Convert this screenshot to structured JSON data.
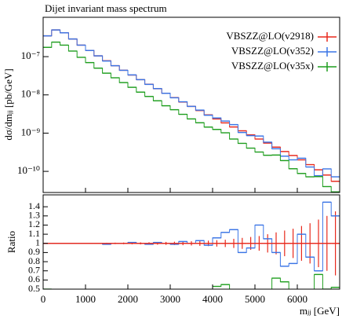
{
  "chart_data": {
    "type": "histogram",
    "title": "Dijet invariant mass spectrum",
    "xlabel": "mⱼⱼ [GeV]",
    "ylabel": "dσ/dmⱼⱼ [pb/GeV]",
    "bins": [
      0,
      200,
      400,
      600,
      800,
      1000,
      1200,
      1400,
      1600,
      1800,
      2000,
      2200,
      2400,
      2600,
      2800,
      3000,
      3200,
      3400,
      3600,
      3800,
      4000,
      4200,
      4400,
      4600,
      4800,
      5000,
      5200,
      5400,
      5600,
      5800,
      6000,
      6200,
      6400,
      6600,
      6800,
      7000
    ],
    "series": [
      {
        "name": "VBSZZ@LO(v2918)",
        "color": "#e8291c",
        "values": [
          3.5e-07,
          5e-07,
          4.2e-07,
          2.9e-07,
          2e-07,
          1.45e-07,
          1.05e-07,
          7.8e-08,
          5.8e-08,
          4.4e-08,
          3.3e-08,
          2.5e-08,
          1.9e-08,
          1.45e-08,
          1.1e-08,
          8.5e-09,
          6.5e-09,
          5e-09,
          3.9e-09,
          3e-09,
          2.35e-09,
          1.85e-09,
          1.45e-09,
          1.15e-09,
          9e-10,
          7e-10,
          5.5e-10,
          4.3e-10,
          3.3e-10,
          2.6e-10,
          2e-10,
          1.5e-10,
          1.1e-10,
          8e-11,
          5.5e-11
        ]
      },
      {
        "name": "VBSZZ@LO(v352)",
        "color": "#3a75e6",
        "values": [
          3.5e-07,
          5e-07,
          4.2e-07,
          2.9e-07,
          2e-07,
          1.45e-07,
          1.05e-07,
          7.7e-08,
          5.8e-08,
          4.4e-08,
          3.33e-08,
          2.5e-08,
          1.88e-08,
          1.46e-08,
          1.1e-08,
          8.4e-09,
          6.6e-09,
          5e-09,
          4e-09,
          2.94e-09,
          2.49e-09,
          2.07e-09,
          1.67e-09,
          1.04e-09,
          8.6e-10,
          8.4e-10,
          5.8e-10,
          3.9e-10,
          2.5e-10,
          2e-10,
          2.2e-10,
          1.3e-10,
          7.7e-11,
          1.16e-10,
          7.2e-11
        ]
      },
      {
        "name": "VBSZZ@LO(v35x)",
        "color": "#1f9e1f",
        "values": [
          1.75e-07,
          2.4e-07,
          2e-07,
          1.4e-07,
          9.6e-08,
          7e-08,
          5e-08,
          3.7e-08,
          2.8e-08,
          2.1e-08,
          1.58e-08,
          1.18e-08,
          9.1e-09,
          7e-09,
          5.2e-09,
          4.1e-09,
          3.1e-09,
          2.35e-09,
          1.87e-09,
          1.44e-09,
          1.25e-09,
          1.02e-09,
          7e-10,
          5.4e-10,
          4.05e-10,
          3.2e-10,
          2.64e-10,
          2.67e-10,
          1.91e-10,
          1.17e-10,
          8.8e-11,
          7.2e-11,
          7.3e-11,
          4e-11,
          2.9e-11
        ]
      }
    ],
    "xlim": [
      0,
      7000
    ],
    "xticks": [
      0,
      1000,
      2000,
      3000,
      4000,
      5000,
      6000
    ],
    "ylim": [
      2.8e-11,
      1.07e-06
    ],
    "yticks": [
      {
        "value": 1e-07,
        "label": "10⁻⁷"
      },
      {
        "value": 1e-08,
        "label": "10⁻⁸"
      },
      {
        "value": 1e-09,
        "label": "10⁻⁹"
      },
      {
        "value": 1e-10,
        "label": "10⁻¹⁰"
      }
    ],
    "log_y": true,
    "legend": "upper right",
    "ratio": {
      "ylabel": "Ratio",
      "ylim": [
        0.5,
        1.53
      ],
      "yticks": [
        0.5,
        0.6,
        0.7,
        0.8,
        0.9,
        1,
        1.1,
        1.2,
        1.3,
        1.4
      ],
      "series": [
        {
          "color": "#e8291c",
          "values": [
            1,
            1,
            1,
            1,
            1,
            1,
            1,
            1,
            1,
            1,
            1,
            1,
            1,
            1,
            1,
            1,
            1,
            1,
            1,
            1,
            1,
            1,
            1,
            1,
            1,
            1,
            1,
            1,
            1,
            1,
            1,
            1,
            1,
            1,
            1
          ],
          "errors": [
            0.005,
            0.004,
            0.004,
            0.005,
            0.005,
            0.006,
            0.006,
            0.007,
            0.008,
            0.009,
            0.01,
            0.011,
            0.012,
            0.014,
            0.016,
            0.018,
            0.02,
            0.023,
            0.027,
            0.03,
            0.035,
            0.04,
            0.05,
            0.06,
            0.07,
            0.08,
            0.1,
            0.12,
            0.14,
            0.16,
            0.19,
            0.22,
            0.26,
            0.3,
            0.35
          ]
        },
        {
          "color": "#3a75e6",
          "values": [
            1.0,
            1.0,
            1.0,
            1.0,
            1.0,
            1.0,
            1.0,
            0.99,
            1.0,
            1.0,
            1.01,
            1.0,
            0.99,
            1.01,
            1.0,
            0.99,
            1.02,
            1.0,
            1.03,
            0.98,
            1.06,
            1.12,
            1.15,
            0.9,
            0.95,
            1.2,
            1.05,
            0.9,
            0.75,
            0.78,
            1.1,
            0.85,
            0.7,
            1.45,
            1.3
          ]
        },
        {
          "color": "#1f9e1f",
          "values": [
            0.5,
            0.48,
            0.48,
            0.48,
            0.48,
            0.48,
            0.48,
            0.48,
            0.48,
            0.48,
            0.48,
            0.47,
            0.48,
            0.48,
            0.47,
            0.48,
            0.48,
            0.47,
            0.48,
            0.48,
            0.53,
            0.55,
            0.48,
            0.47,
            0.45,
            0.46,
            0.48,
            0.62,
            0.58,
            0.45,
            0.44,
            0.48,
            0.66,
            0.5,
            0.52
          ]
        }
      ]
    }
  }
}
